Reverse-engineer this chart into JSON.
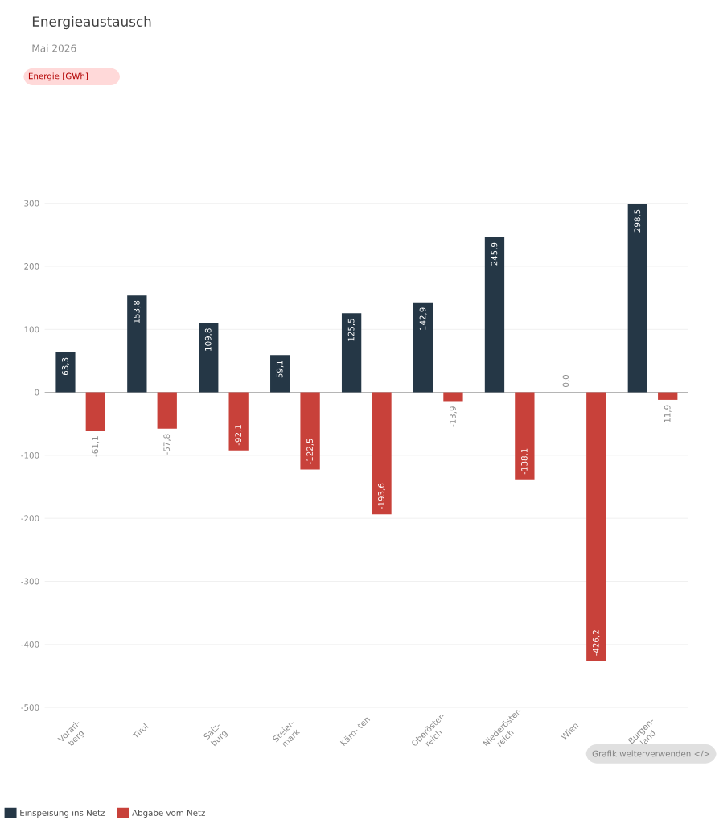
{
  "chart_data": {
    "type": "bar",
    "title": "Energieaustausch",
    "subtitle": "Mai 2026",
    "categories": [
      "Vorarl- berg",
      "Tirol",
      "Salz- burg",
      "Steier- mark",
      "Kärn- ten",
      "Oberöster- reich",
      "Niederöster- reich",
      "Wien",
      "Burgen- land"
    ],
    "series": [
      {
        "name": "Einspeisung ins Netz",
        "color": "#253746",
        "values": [
          63.3,
          153.8,
          109.8,
          59.1,
          125.5,
          142.9,
          245.9,
          0.0,
          298.5
        ],
        "value_labels": [
          "63,3",
          "153,8",
          "109,8",
          "59,1",
          "125,5",
          "142,9",
          "245,9",
          "0,0",
          "298,5"
        ]
      },
      {
        "name": "Abgabe vom Netz",
        "color": "#c8413a",
        "values": [
          -61.1,
          -57.8,
          -92.1,
          -122.5,
          -193.6,
          -13.9,
          -138.1,
          -426.2,
          -11.9
        ],
        "value_labels": [
          "-61,1",
          "-57,8",
          "-92,1",
          "-122,5",
          "-193,6",
          "-13,9",
          "-138,1",
          "-426,2",
          "-11,9"
        ]
      }
    ],
    "ylim": [
      -500,
      300
    ],
    "yticks": [
      -500,
      -400,
      -300,
      -200,
      -100,
      0,
      100,
      200,
      300
    ],
    "grid": "y",
    "legend": "bottom left",
    "annotations": [
      "Energie [GWh]",
      "Grafik weiterverwenden </>"
    ]
  }
}
